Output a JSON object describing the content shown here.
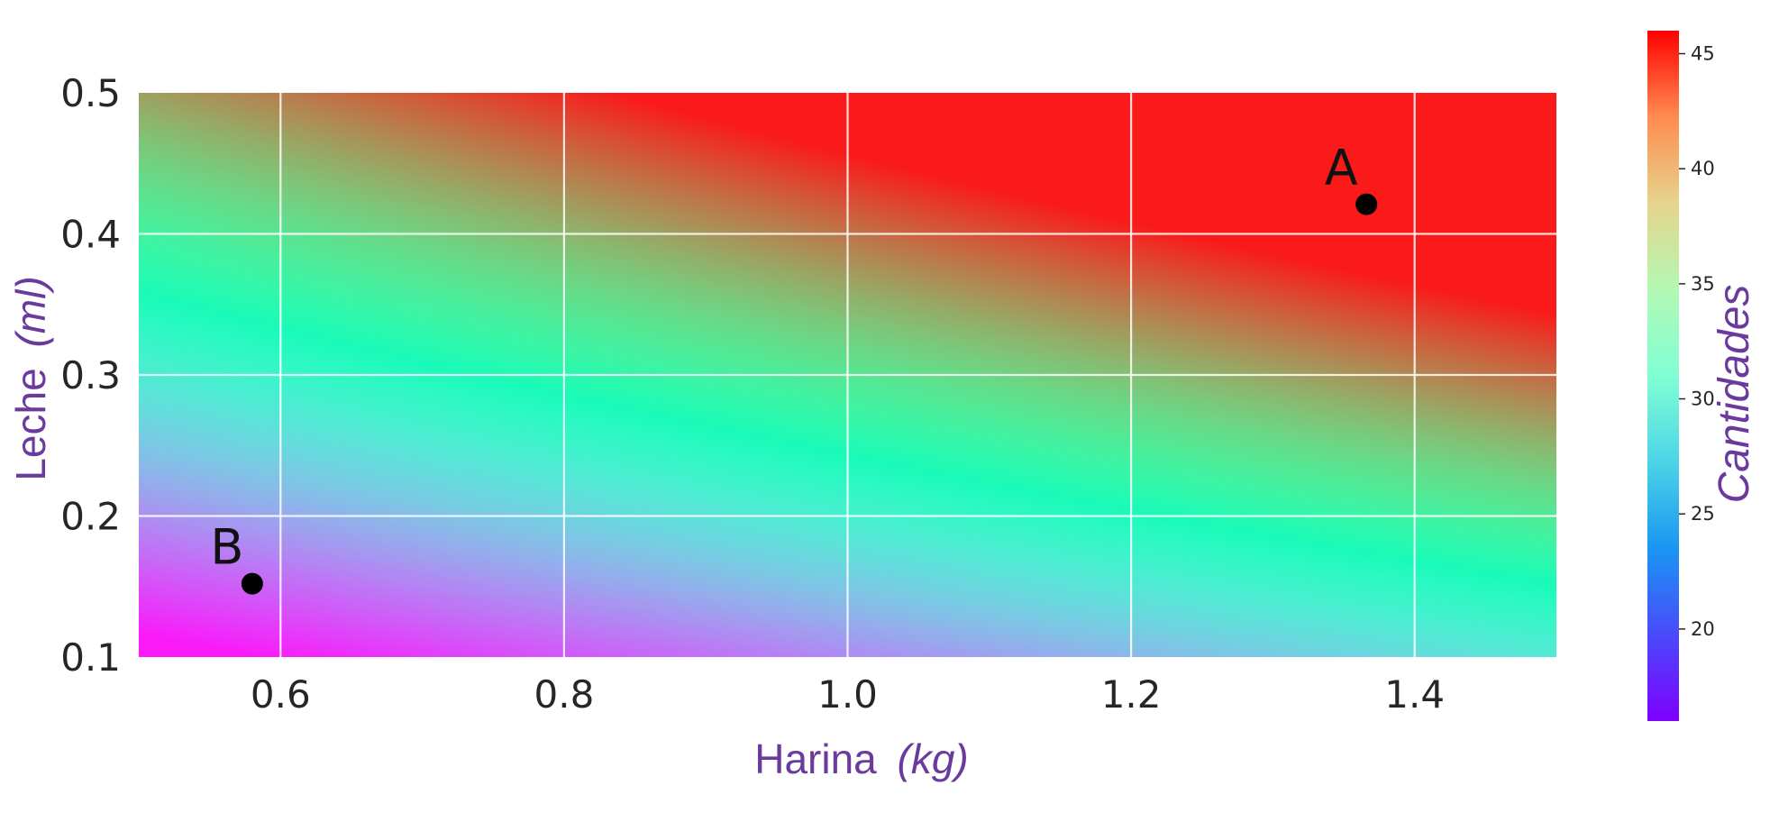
{
  "chart_data": {
    "type": "heatmap",
    "xlim": [
      0.5,
      1.5
    ],
    "ylim": [
      0.1,
      0.5
    ],
    "x_ticks": [
      "0.6",
      "0.8",
      "1.0",
      "1.2",
      "1.4"
    ],
    "y_ticks": [
      "0.1",
      "0.2",
      "0.3",
      "0.4",
      "0.5"
    ],
    "x_tick_values": [
      0.6,
      0.8,
      1.0,
      1.2,
      1.4
    ],
    "y_tick_values": [
      0.1,
      0.2,
      0.3,
      0.4,
      0.5
    ],
    "xlabel": {
      "text": "Harina",
      "unit": "(kg)"
    },
    "ylabel": {
      "text": "Leche",
      "unit": "(ml)"
    },
    "grid": true,
    "colormap": "rainbow",
    "colorbar": {
      "label": "Cantidades",
      "range": [
        16,
        46
      ],
      "ticks": [
        "20",
        "25",
        "30",
        "35",
        "40",
        "45"
      ],
      "tick_values": [
        20,
        25,
        30,
        35,
        40,
        45
      ]
    },
    "points": [
      {
        "label": "A",
        "x": 1.366,
        "y": 0.421
      },
      {
        "label": "B",
        "x": 0.58,
        "y": 0.152
      }
    ]
  },
  "colors": {
    "label_purple": "#6A3A9C",
    "grid": "#ffffff",
    "point": "#000000"
  }
}
